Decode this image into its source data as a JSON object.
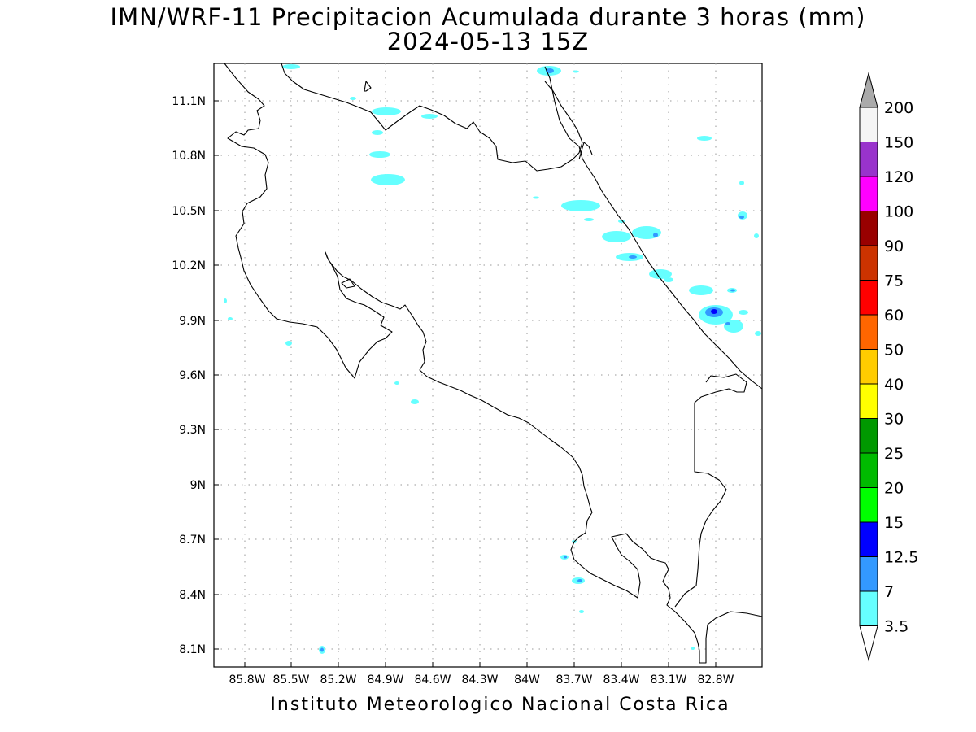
{
  "title_line1": "IMN/WRF-11 Precipitacion Acumulada durante 3 horas (mm)",
  "title_line2": "2024-05-13 15Z",
  "footer": "Instituto Meteorologico Nacional Costa Rica",
  "lat_labels": [
    "11.1N",
    "10.8N",
    "10.5N",
    "10.2N",
    "9.9N",
    "9.6N",
    "9.3N",
    "9N",
    "8.7N",
    "8.4N",
    "8.1N"
  ],
  "lon_labels": [
    "85.8W",
    "85.5W",
    "85.2W",
    "84.9W",
    "84.6W",
    "84.3W",
    "84W",
    "83.7W",
    "83.4W",
    "83.1W",
    "82.8W"
  ],
  "colorbar": {
    "labels": [
      "200",
      "150",
      "120",
      "100",
      "90",
      "75",
      "60",
      "50",
      "40",
      "30",
      "25",
      "20",
      "15",
      "12.5",
      "7",
      "3.5"
    ],
    "colors": [
      "#f5f5f5",
      "#9933cc",
      "#ff00ff",
      "#990000",
      "#cc3300",
      "#ff0000",
      "#ff6600",
      "#ffcc00",
      "#ffff00",
      "#009900",
      "#00bb00",
      "#00ff00",
      "#0000ff",
      "#3399ff",
      "#66ffff"
    ],
    "top_arrow_color": "#aaaaaa",
    "bottom_arrow_color": "#ffffff"
  }
}
